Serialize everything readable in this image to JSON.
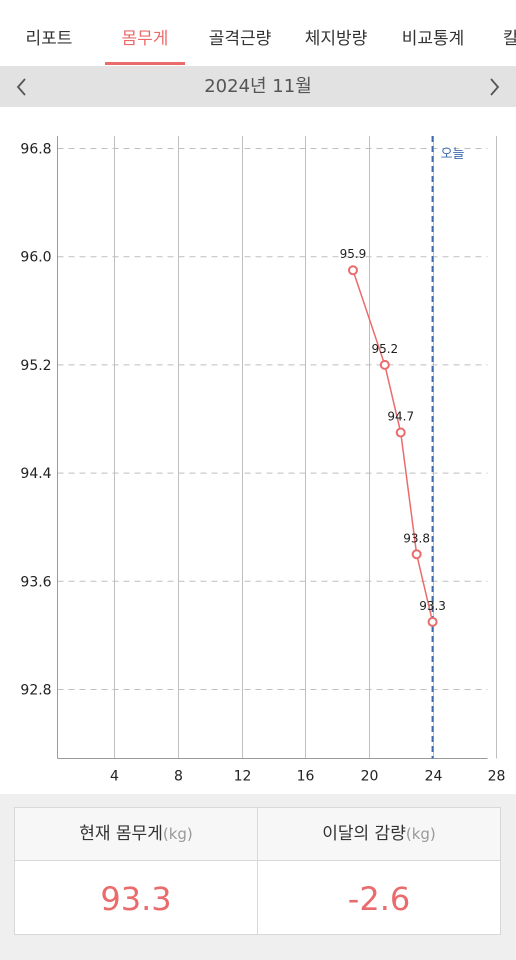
{
  "tabs": [
    {
      "label": "리포트",
      "active": false
    },
    {
      "label": "몸무게",
      "active": true
    },
    {
      "label": "골격근량",
      "active": false
    },
    {
      "label": "체지방량",
      "active": false
    },
    {
      "label": "비교통계",
      "active": false
    },
    {
      "label": "칼",
      "active": false
    }
  ],
  "month": {
    "label": "2024년 11월",
    "prev_icon": "chevron-left-icon",
    "next_icon": "chevron-right-icon"
  },
  "colors": {
    "accent": "#ea6b6b",
    "today_line": "#3d6bb0",
    "grid": "#bfbfbf"
  },
  "chart_data": {
    "type": "line",
    "title": "",
    "xlabel": "",
    "ylabel": "",
    "xlim": [
      0,
      31
    ],
    "ylim": [
      92.2,
      96.9
    ],
    "x_ticks": [
      4,
      8,
      12,
      16,
      20,
      24,
      28
    ],
    "y_ticks": [
      92.8,
      93.6,
      94.4,
      95.2,
      96.0,
      96.8
    ],
    "y_tick_labels": [
      "92.8",
      "93.6",
      "94.4",
      "95.2",
      "96.0",
      "96.8"
    ],
    "grid": true,
    "today": {
      "x": 24,
      "label": "오늘"
    },
    "series": [
      {
        "x": [
          19,
          21,
          22,
          23,
          24
        ],
        "y": [
          95.9,
          95.2,
          94.7,
          93.8,
          93.3
        ],
        "labels": [
          "95.9",
          "95.2",
          "94.7",
          "93.8",
          "93.3"
        ]
      }
    ]
  },
  "summary": {
    "current": {
      "label": "현재 몸무게",
      "unit": "(kg)",
      "value": "93.3"
    },
    "change": {
      "label": "이달의 감량",
      "unit": "(kg)",
      "value": "-2.6"
    }
  }
}
